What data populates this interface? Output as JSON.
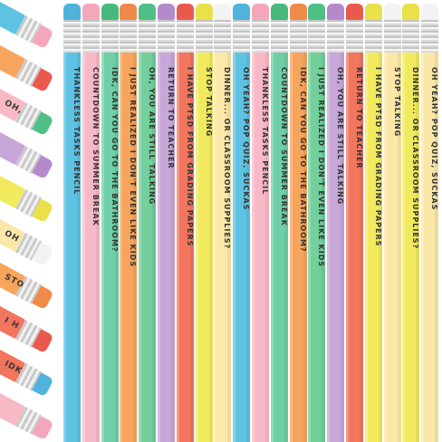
{
  "phrases": [
    "THANKLESS TASKS PENCIL",
    "COUNTDOWN TO SUMMER BREAK",
    "IDK, CAN YOU GO TO THE BATHROOM?",
    "I JUST REALIZED I DON'T EVEN LIKE KIDS",
    "OH, YOU ARE STILL TALKING",
    "RETURN TO TEACHER",
    "I HAVE PTSD FROM GRADING PAPERS",
    "STOP TALKING",
    "DINNER... OR CLASSROOM SUPPLIES?",
    "OH YEAH? POP QUIZ, SUCKAS",
    "THANKLESS TASKS PENCIL",
    "COUNTDOWN TO SUMMER BREAK",
    "IDK, CAN YOU GO TO THE BATHROOM?",
    "I JUST REALIZED I DON'T EVEN LIKE KIDS",
    "OH, YOU ARE STILL TALKING",
    "RETURN TO TEACHER",
    "I HAVE PTSD FROM GRADING PAPERS",
    "STOP TALKING",
    "DINNER... OR CLASSROOM SUPPLIES?",
    "OH YEAH? POP QUIZ, SUCKAS"
  ],
  "colors": {
    "body": [
      "#5ec3e3",
      "#f8b9c6",
      "#6fd0a8",
      "#f7a45c",
      "#73cf9c",
      "#c7a6d8",
      "#f2755e",
      "#f2ea5e",
      "#fbe7a8",
      "#5ec3e3",
      "#f8b9c6",
      "#6fd0a8",
      "#f7a45c",
      "#73cf9c",
      "#c7a6d8",
      "#f2755e",
      "#f2ea5e",
      "#fbe7a8",
      "#f2ea5e",
      "#fbe7a8"
    ],
    "eraser": [
      "#4fb3dc",
      "#f4a7bb",
      "#47b97c",
      "#f08a4a",
      "#4fbf86",
      "#b58acd",
      "#e95a4c",
      "#e9e04a",
      "#f3f3f3",
      "#4fb3dc",
      "#f4a7bb",
      "#47b97c",
      "#f08a4a",
      "#4fbf86",
      "#b58acd",
      "#e95a4c",
      "#e9e04a",
      "#f3f3f3",
      "#e9e04a",
      "#f3f3f3"
    ]
  },
  "left_stack": [
    {
      "label": "",
      "body": "#5ec3e3",
      "eraser": "#f4a7bb"
    },
    {
      "label": "",
      "body": "#f7a45c",
      "eraser": "#e95a4c"
    },
    {
      "label": "OH,",
      "body": "#f8b9c6",
      "eraser": "#4fbf86"
    },
    {
      "label": "",
      "body": "#c7a6d8",
      "eraser": "#b58acd"
    },
    {
      "label": "",
      "body": "#f2ea5e",
      "eraser": "#e9e04a"
    },
    {
      "label": "OH",
      "body": "#fbe7a8",
      "eraser": "#f3f3f3"
    },
    {
      "label": "STO",
      "body": "#f7a45c",
      "eraser": "#f08a4a"
    },
    {
      "label": "I H",
      "body": "#f2755e",
      "eraser": "#e95a4c"
    },
    {
      "label": "IDK",
      "body": "#f2755e",
      "eraser": "#4fb3dc"
    },
    {
      "label": "",
      "body": "#f8b9c6",
      "eraser": "#f4a7bb"
    }
  ]
}
